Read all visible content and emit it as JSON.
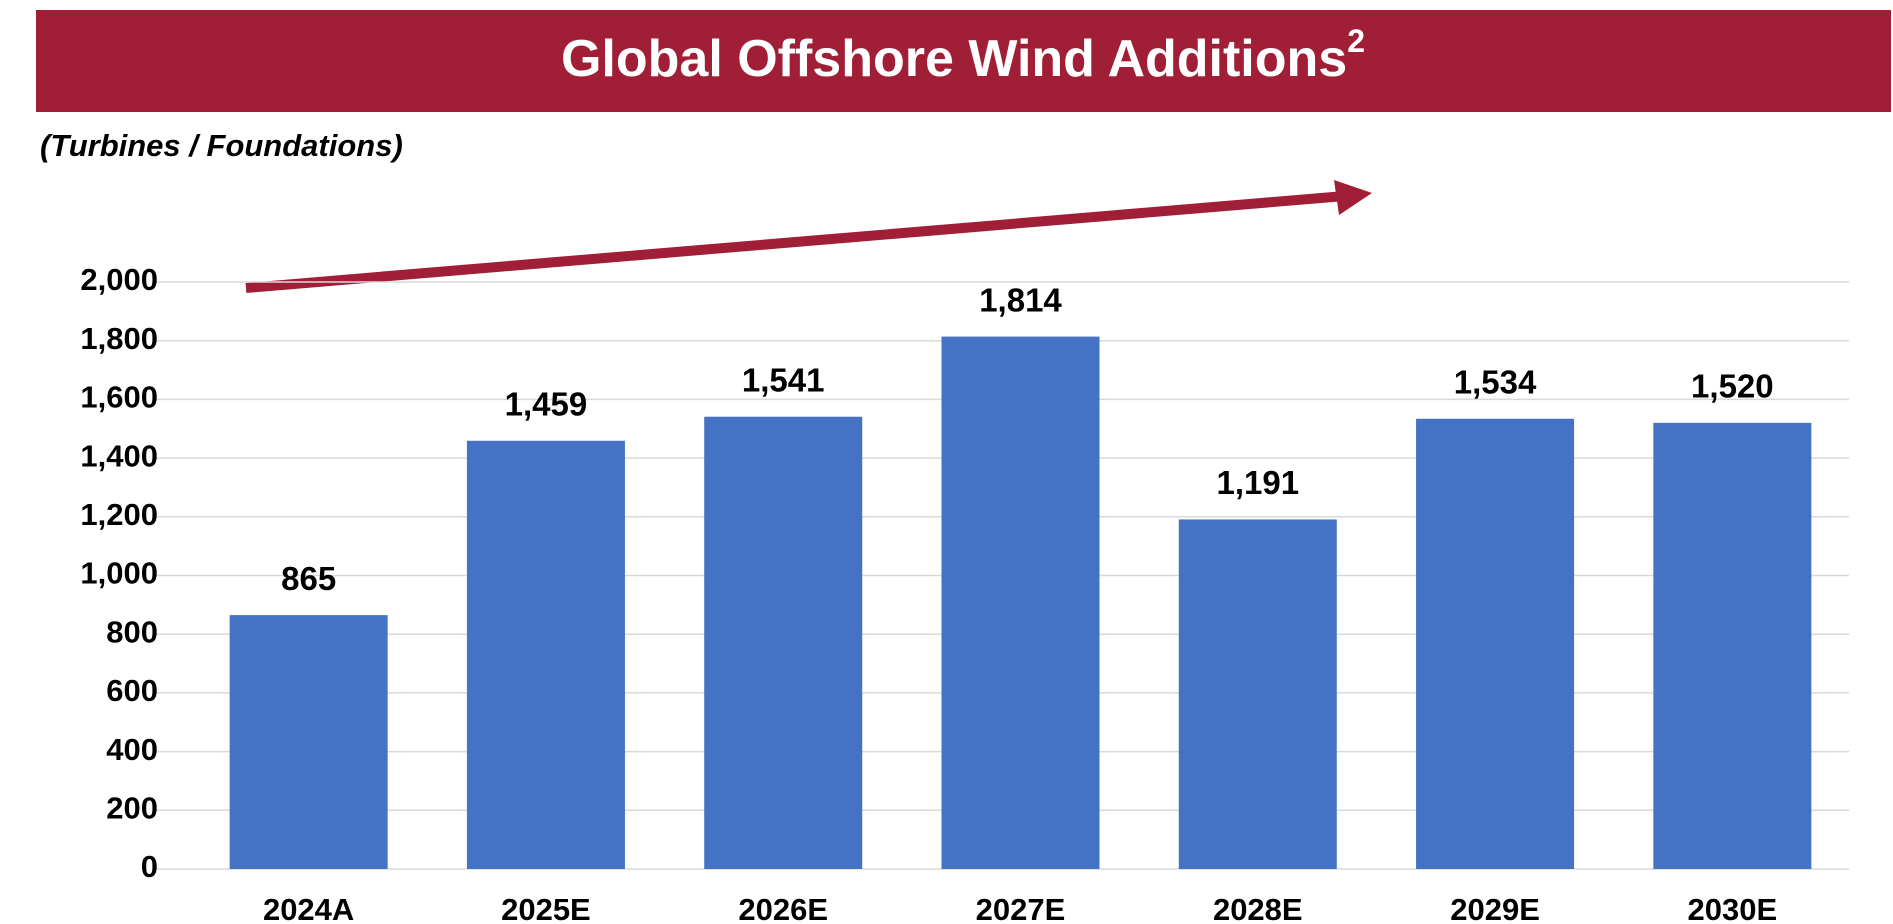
{
  "chart_data": {
    "type": "bar",
    "title": "Global Offshore Wind Additions",
    "title_superscript": "2",
    "subtitle": "(Turbines / Foundations)",
    "categories": [
      "2024A",
      "2025E",
      "2026E",
      "2027E",
      "2028E",
      "2029E",
      "2030E"
    ],
    "values": [
      865,
      1459,
      1541,
      1814,
      1191,
      1534,
      1520
    ],
    "value_labels": [
      "865",
      "1,459",
      "1,541",
      "1,814",
      "1,191",
      "1,534",
      "1,520"
    ],
    "color": "#4472c4",
    "ylim": [
      0,
      2000
    ],
    "yticks": [
      0,
      200,
      400,
      600,
      800,
      {
        "value": 1000,
        "label": "1,000"
      },
      {
        "value": 1200,
        "label": "1,200"
      },
      {
        "value": 1400,
        "label": "1,400"
      },
      {
        "value": 1600,
        "label": "1,600"
      },
      {
        "value": 1800,
        "label": "1,800"
      },
      {
        "value": 2000,
        "label": "2,000"
      }
    ],
    "grid": true
  }
}
